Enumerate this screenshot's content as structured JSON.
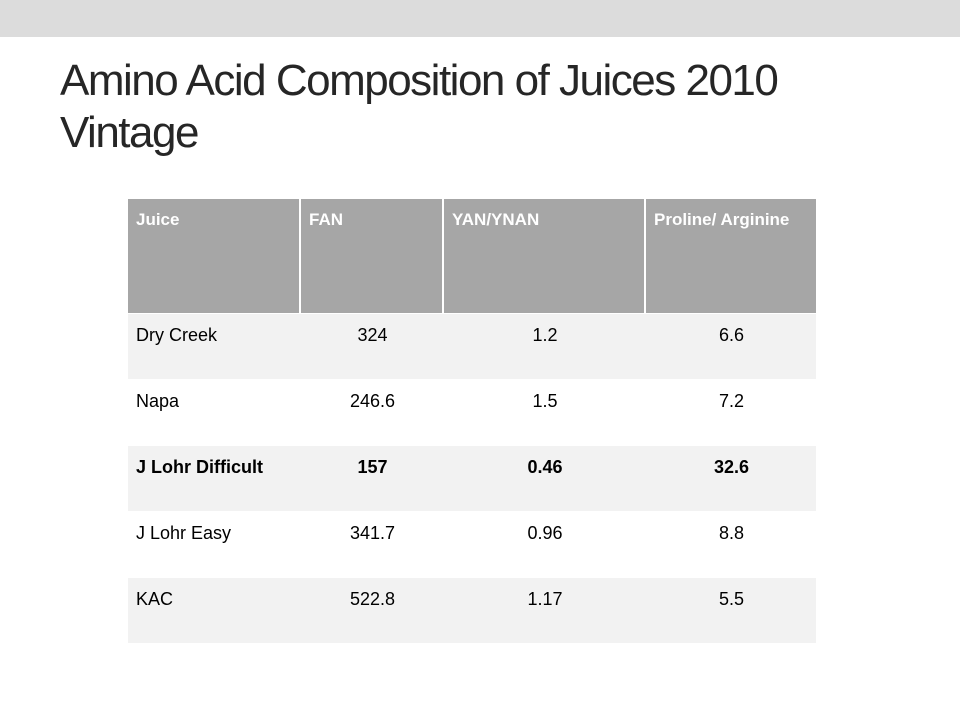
{
  "title": "Amino Acid Composition of Juices 2010 Vintage",
  "table": {
    "headers": [
      "Juice",
      "FAN",
      "YAN/YNAN",
      "Proline/ Arginine"
    ],
    "rows": [
      [
        "Dry Creek",
        "324",
        "1.2",
        "6.6"
      ],
      [
        "Napa",
        "246.6",
        "1.5",
        "7.2"
      ],
      [
        "J Lohr Difficult",
        "157",
        "0.46",
        "32.6"
      ],
      [
        "J Lohr Easy",
        "341.7",
        "0.96",
        "8.8"
      ],
      [
        "KAC",
        "522.8",
        "1.17",
        "5.5"
      ]
    ],
    "bold_row_index": 2
  },
  "colors": {
    "header_fill": "#a6a6a6",
    "row_fill_odd": "#f2f2f2",
    "row_fill_even": "#ffffff",
    "top_band": "#dcdcdc",
    "title_text": "#262626"
  }
}
